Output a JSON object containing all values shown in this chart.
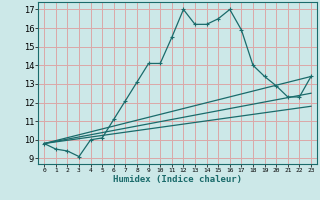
{
  "title": "",
  "xlabel": "Humidex (Indice chaleur)",
  "ylabel": "",
  "bg_color": "#cce8e8",
  "grid_color": "#dba8a8",
  "line_color": "#1a6b6b",
  "xlim": [
    -0.5,
    23.5
  ],
  "ylim": [
    8.7,
    17.4
  ],
  "xticks": [
    0,
    1,
    2,
    3,
    4,
    5,
    6,
    7,
    8,
    9,
    10,
    11,
    12,
    13,
    14,
    15,
    16,
    17,
    18,
    19,
    20,
    21,
    22,
    23
  ],
  "yticks": [
    9,
    10,
    11,
    12,
    13,
    14,
    15,
    16,
    17
  ],
  "main_line": {
    "x": [
      0,
      1,
      2,
      3,
      4,
      5,
      6,
      7,
      8,
      9,
      10,
      11,
      12,
      13,
      14,
      15,
      16,
      17,
      18,
      19,
      20,
      21,
      22,
      23
    ],
    "y": [
      9.8,
      9.5,
      9.4,
      9.1,
      10.0,
      10.1,
      11.1,
      12.1,
      13.1,
      14.1,
      14.1,
      15.5,
      17.0,
      16.2,
      16.2,
      16.5,
      17.0,
      15.9,
      14.0,
      13.4,
      12.9,
      12.3,
      12.3,
      13.4
    ]
  },
  "trend_lines": [
    {
      "x": [
        0,
        23
      ],
      "y": [
        9.8,
        13.4
      ]
    },
    {
      "x": [
        0,
        23
      ],
      "y": [
        9.8,
        12.5
      ]
    },
    {
      "x": [
        0,
        23
      ],
      "y": [
        9.8,
        11.8
      ]
    }
  ]
}
